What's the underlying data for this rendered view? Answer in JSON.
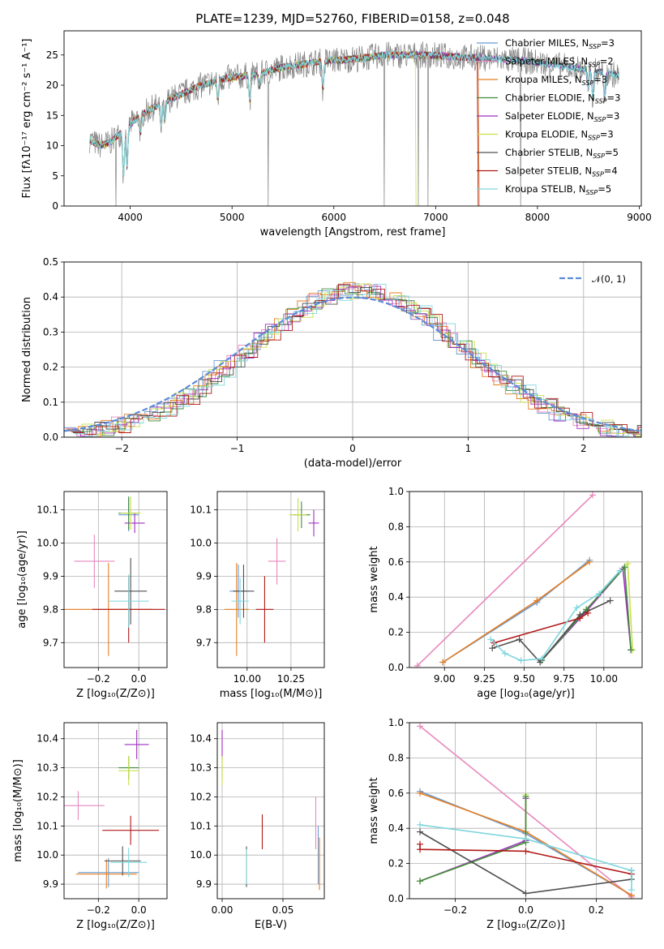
{
  "figure_title": "PLATE=1239, MJD=52760, FIBERID=0158, z=0.048",
  "series": [
    {
      "name": "Chabrier MILES",
      "nssp": "3",
      "color": "#6a9bd2"
    },
    {
      "name": "Salpeter MILES",
      "nssp": "2",
      "color": "#e788be"
    },
    {
      "name": "Kroupa MILES",
      "nssp": "3",
      "color": "#e67e22"
    },
    {
      "name": "Chabrier ELODIE",
      "nssp": "3",
      "color": "#3f8a3f"
    },
    {
      "name": "Salpeter ELODIE",
      "nssp": "3",
      "color": "#a12fc0"
    },
    {
      "name": "Kroupa ELODIE",
      "nssp": "3",
      "color": "#c8e04b"
    },
    {
      "name": "Chabrier STELIB",
      "nssp": "5",
      "color": "#505050"
    },
    {
      "name": "Salpeter STELIB",
      "nssp": "4",
      "color": "#b01818"
    },
    {
      "name": "Kroupa STELIB",
      "nssp": "5",
      "color": "#7fd6dd"
    }
  ],
  "chart_data": [
    {
      "id": "spectrum",
      "type": "line",
      "xlabel": "wavelength [Angstrom, rest frame]",
      "ylabel": "Flux [fλ10⁻¹⁷ erg cm⁻² s⁻¹ A⁻¹]",
      "xlim": [
        3350,
        9020
      ],
      "ylim": [
        0,
        29
      ],
      "xticks": [
        4000,
        5000,
        6000,
        7000,
        8000,
        9000
      ],
      "yticks": [
        0,
        5,
        10,
        15,
        20,
        25
      ],
      "grid": false,
      "legend": "top-right",
      "continuum": {
        "x": [
          3600,
          3700,
          3800,
          3900,
          4000,
          4100,
          4300,
          4500,
          4700,
          4900,
          5100,
          5300,
          5500,
          5700,
          5900,
          6100,
          6300,
          6500,
          6700,
          6900,
          7100,
          7300,
          7500,
          7700,
          7900,
          8100,
          8300,
          8500,
          8700,
          8800
        ],
        "y": [
          11,
          10,
          10.5,
          12,
          13.5,
          15,
          17,
          18.5,
          20,
          21,
          21.5,
          22,
          23,
          23.5,
          24,
          24.2,
          24.5,
          25,
          25,
          25,
          24.8,
          24.6,
          24.5,
          24.2,
          24,
          23.5,
          23,
          22.5,
          22,
          21.5
        ]
      },
      "absorption_lines": [
        {
          "x": 3934,
          "depth": 0.6
        },
        {
          "x": 3969,
          "depth": 0.5
        },
        {
          "x": 4101,
          "depth": 0.2
        },
        {
          "x": 4304,
          "depth": 0.25
        },
        {
          "x": 4340,
          "depth": 0.2
        },
        {
          "x": 4861,
          "depth": 0.15
        },
        {
          "x": 5175,
          "depth": 0.2
        },
        {
          "x": 5270,
          "depth": 0.1
        },
        {
          "x": 5893,
          "depth": 0.2
        },
        {
          "x": 8498,
          "depth": 0.15
        },
        {
          "x": 8542,
          "depth": 0.2
        },
        {
          "x": 8662,
          "depth": 0.2
        }
      ],
      "cutoffs": [
        {
          "series": "Kroupa ELODIE",
          "x": 6800
        },
        {
          "series": "Salpeter STELIB",
          "x": 7410
        },
        {
          "series": "Kroupa MILES",
          "x": 7420
        },
        {
          "series": "Chabrier MILES",
          "x": 7420
        },
        {
          "series": "Salpeter MILES",
          "x": 7420
        }
      ]
    },
    {
      "id": "residuals",
      "type": "histogram",
      "xlabel": "(data-model)/error",
      "ylabel": "Normed distribution",
      "xlim": [
        -2.5,
        2.5
      ],
      "ylim": [
        0,
        0.5
      ],
      "xticks": [
        -2,
        -1,
        0,
        1,
        2
      ],
      "yticks": [
        0.0,
        0.1,
        0.2,
        0.3,
        0.4,
        0.5
      ],
      "grid": true,
      "legend": "top-right",
      "reference_curve": {
        "label": "𝒩(0, 1)",
        "mean": 0,
        "sigma": 1,
        "color": "#5b8bd6"
      },
      "bin_width": 0.1
    },
    {
      "id": "age_vs_Z",
      "type": "errorbar",
      "xlabel": "Z [log₁₀(Z/Z⊙)]",
      "ylabel": "age  [log₁₀(age/yr)]",
      "xlim": [
        -0.37,
        0.14
      ],
      "ylim": [
        9.625,
        10.155
      ],
      "xticks": [
        -0.2,
        0.0
      ],
      "yticks": [
        9.7,
        9.8,
        9.9,
        10.0,
        10.1
      ],
      "grid": true,
      "points": [
        {
          "series": "Chabrier MILES",
          "x": -0.05,
          "xerr": 0.05,
          "y": 10.085,
          "yerr": 0.05
        },
        {
          "series": "Salpeter MILES",
          "x": -0.22,
          "xerr": 0.1,
          "y": 9.945,
          "yerr": 0.08
        },
        {
          "series": "Kroupa MILES",
          "x": -0.15,
          "xerr": 0.22,
          "y": 9.8,
          "yerr": 0.14
        },
        {
          "series": "Chabrier ELODIE",
          "x": -0.05,
          "xerr": 0.05,
          "y": 10.09,
          "yerr": 0.05
        },
        {
          "series": "Salpeter ELODIE",
          "x": -0.02,
          "xerr": 0.05,
          "y": 10.06,
          "yerr": 0.03
        },
        {
          "series": "Kroupa ELODIE",
          "x": -0.04,
          "xerr": 0.05,
          "y": 10.09,
          "yerr": 0.05
        },
        {
          "series": "Chabrier STELIB",
          "x": -0.04,
          "xerr": 0.08,
          "y": 9.855,
          "yerr": 0.1
        },
        {
          "series": "Salpeter STELIB",
          "x": -0.05,
          "xerr": 0.18,
          "y": 9.8,
          "yerr": 0.1
        },
        {
          "series": "Kroupa STELIB",
          "x": -0.05,
          "xerr": 0.1,
          "y": 9.825,
          "yerr": 0.08
        }
      ]
    },
    {
      "id": "age_vs_mass",
      "type": "errorbar",
      "xlabel": "mass [log₁₀(M/M⊙)]",
      "ylabel": "",
      "xlim": [
        9.83,
        10.44
      ],
      "ylim": [
        9.625,
        10.155
      ],
      "xticks": [
        10.0,
        10.25
      ],
      "yticks": [
        9.7,
        9.8,
        9.9,
        10.0,
        10.1
      ],
      "grid": true,
      "points": [
        {
          "series": "Chabrier MILES",
          "x": 9.95,
          "xerr": 0.05,
          "y": 9.855,
          "yerr": 0.08
        },
        {
          "series": "Salpeter MILES",
          "x": 10.17,
          "xerr": 0.05,
          "y": 9.945,
          "yerr": 0.07
        },
        {
          "series": "Kroupa MILES",
          "x": 9.94,
          "xerr": 0.07,
          "y": 9.8,
          "yerr": 0.14
        },
        {
          "series": "Chabrier ELODIE",
          "x": 10.31,
          "xerr": 0.05,
          "y": 10.085,
          "yerr": 0.04
        },
        {
          "series": "Salpeter ELODIE",
          "x": 10.38,
          "xerr": 0.03,
          "y": 10.06,
          "yerr": 0.04
        },
        {
          "series": "Kroupa ELODIE",
          "x": 10.29,
          "xerr": 0.05,
          "y": 10.085,
          "yerr": 0.05
        },
        {
          "series": "Chabrier STELIB",
          "x": 9.98,
          "xerr": 0.06,
          "y": 9.855,
          "yerr": 0.08
        },
        {
          "series": "Salpeter STELIB",
          "x": 10.1,
          "xerr": 0.05,
          "y": 9.8,
          "yerr": 0.1
        },
        {
          "series": "Kroupa STELIB",
          "x": 9.96,
          "xerr": 0.05,
          "y": 9.825,
          "yerr": 0.07
        }
      ]
    },
    {
      "id": "mw_vs_age",
      "type": "line",
      "xlabel": "age  [log₁₀(age/yr)]",
      "ylabel": "mass weight",
      "xlim": [
        8.78,
        10.24
      ],
      "ylim": [
        0,
        1.0
      ],
      "xticks": [
        9.0,
        9.25,
        9.5,
        9.75,
        10.0
      ],
      "yticks": [
        0.0,
        0.2,
        0.4,
        0.6,
        0.8,
        1.0
      ],
      "grid": true,
      "lines": [
        {
          "series": "Salpeter MILES",
          "x": [
            8.83,
            9.93
          ],
          "y": [
            0.01,
            0.98
          ]
        },
        {
          "series": "Chabrier MILES",
          "x": [
            8.99,
            9.58,
            9.91
          ],
          "y": [
            0.03,
            0.37,
            0.61
          ]
        },
        {
          "series": "Kroupa MILES",
          "x": [
            8.99,
            9.58,
            9.91
          ],
          "y": [
            0.03,
            0.38,
            0.6
          ]
        },
        {
          "series": "Salpeter ELODIE",
          "x": [
            9.61,
            9.89,
            10.12,
            10.17
          ],
          "y": [
            0.04,
            0.32,
            0.56,
            0.1
          ]
        },
        {
          "series": "Kroupa ELODIE",
          "x": [
            9.61,
            9.89,
            10.15,
            10.18
          ],
          "y": [
            0.04,
            0.33,
            0.59,
            0.1
          ]
        },
        {
          "series": "Chabrier ELODIE",
          "x": [
            9.61,
            9.89,
            10.13,
            10.17
          ],
          "y": [
            0.04,
            0.33,
            0.57,
            0.1
          ]
        },
        {
          "series": "Chabrier STELIB",
          "x": [
            9.3,
            9.47,
            9.6,
            9.85,
            10.04
          ],
          "y": [
            0.11,
            0.16,
            0.03,
            0.3,
            0.38
          ]
        },
        {
          "series": "Salpeter STELIB",
          "x": [
            9.31,
            9.85,
            9.9
          ],
          "y": [
            0.14,
            0.28,
            0.31
          ]
        },
        {
          "series": "Kroupa STELIB",
          "x": [
            9.29,
            9.38,
            9.48,
            9.61,
            9.83,
            9.97,
            10.1
          ],
          "y": [
            0.16,
            0.08,
            0.04,
            0.05,
            0.34,
            0.42,
            0.55
          ]
        }
      ]
    },
    {
      "id": "mass_vs_Z",
      "type": "errorbar",
      "xlabel": "Z [log₁₀(Z/Z⊙)]",
      "ylabel": "mass [log₁₀(M/M⊙)]",
      "xlim": [
        -0.37,
        0.14
      ],
      "ylim": [
        9.85,
        10.455
      ],
      "xticks": [
        -0.2,
        0.0
      ],
      "yticks": [
        9.9,
        10.0,
        10.1,
        10.2,
        10.3,
        10.4
      ],
      "grid": true,
      "points": [
        {
          "series": "Chabrier MILES",
          "x": -0.15,
          "xerr": 0.15,
          "y": 9.94,
          "yerr": 0.05
        },
        {
          "series": "Salpeter MILES",
          "x": -0.3,
          "xerr": 0.13,
          "y": 10.17,
          "yerr": 0.05
        },
        {
          "series": "Kroupa MILES",
          "x": -0.16,
          "xerr": 0.15,
          "y": 9.935,
          "yerr": 0.05
        },
        {
          "series": "Chabrier ELODIE",
          "x": -0.05,
          "xerr": 0.05,
          "y": 10.3,
          "yerr": 0.04
        },
        {
          "series": "Salpeter ELODIE",
          "x": -0.01,
          "xerr": 0.06,
          "y": 10.38,
          "yerr": 0.05
        },
        {
          "series": "Kroupa ELODIE",
          "x": -0.05,
          "xerr": 0.05,
          "y": 10.29,
          "yerr": 0.05
        },
        {
          "series": "Chabrier STELIB",
          "x": -0.08,
          "xerr": 0.09,
          "y": 9.98,
          "yerr": 0.05
        },
        {
          "series": "Salpeter STELIB",
          "x": -0.04,
          "xerr": 0.14,
          "y": 10.085,
          "yerr": 0.05
        },
        {
          "series": "Kroupa STELIB",
          "x": -0.05,
          "xerr": 0.09,
          "y": 9.975,
          "yerr": 0.05
        }
      ]
    },
    {
      "id": "mass_vs_ebv",
      "type": "errorbar",
      "xlabel": "E(B-V)",
      "ylabel": "",
      "xlim": [
        -0.004,
        0.084
      ],
      "ylim": [
        9.85,
        10.455
      ],
      "xticks": [
        0.0,
        0.05
      ],
      "yticks": [
        9.9,
        10.0,
        10.1,
        10.2,
        10.3,
        10.4
      ],
      "grid": true,
      "points": [
        {
          "series": "Chabrier MILES",
          "x": 0.079,
          "xerr": 0,
          "y": 10.0,
          "yerr": 0.1
        },
        {
          "series": "Salpeter MILES",
          "x": 0.077,
          "xerr": 0,
          "y": 10.11,
          "yerr": 0.09
        },
        {
          "series": "Kroupa MILES",
          "x": 0.08,
          "xerr": 0,
          "y": 9.97,
          "yerr": 0.09
        },
        {
          "series": "Chabrier ELODIE",
          "x": 0.0,
          "xerr": 0,
          "y": 10.3,
          "yerr": 0.04
        },
        {
          "series": "Salpeter ELODIE",
          "x": 0.0,
          "xerr": 0,
          "y": 10.38,
          "yerr": 0.05
        },
        {
          "series": "Kroupa ELODIE",
          "x": 0.0,
          "xerr": 0,
          "y": 10.29,
          "yerr": 0.05
        },
        {
          "series": "Chabrier STELIB",
          "x": 0.02,
          "xerr": 0,
          "y": 9.96,
          "yerr": 0.07
        },
        {
          "series": "Salpeter STELIB",
          "x": 0.033,
          "xerr": 0,
          "y": 10.08,
          "yerr": 0.06
        },
        {
          "series": "Kroupa STELIB",
          "x": 0.02,
          "xerr": 0,
          "y": 9.96,
          "yerr": 0.06
        }
      ]
    },
    {
      "id": "mw_vs_Z",
      "type": "line",
      "xlabel": "Z [log₁₀(Z/Z⊙)]",
      "ylabel": "mass weight",
      "xlim": [
        -0.33,
        0.33
      ],
      "ylim": [
        0,
        1.0
      ],
      "xticks": [
        -0.2,
        0.0,
        0.2
      ],
      "yticks": [
        0.0,
        0.2,
        0.4,
        0.6,
        0.8,
        1.0
      ],
      "grid": true,
      "lines": [
        {
          "series": "Salpeter MILES",
          "x": [
            -0.3,
            0.3
          ],
          "y": [
            0.98,
            0.01
          ]
        },
        {
          "series": "Chabrier MILES",
          "x": [
            -0.3,
            0.0,
            0.3
          ],
          "y": [
            0.61,
            0.37,
            0.02
          ]
        },
        {
          "series": "Kroupa MILES",
          "x": [
            -0.3,
            0.0,
            0.3
          ],
          "y": [
            0.6,
            0.38,
            0.02
          ]
        },
        {
          "series": "Salpeter ELODIE",
          "x": [
            -0.3,
            0.0,
            0.0
          ],
          "y": [
            0.1,
            0.33,
            0.57
          ]
        },
        {
          "series": "Kroupa ELODIE",
          "x": [
            -0.3,
            0.0,
            0.0
          ],
          "y": [
            0.1,
            0.32,
            0.59
          ]
        },
        {
          "series": "Chabrier ELODIE",
          "x": [
            -0.3,
            0.0,
            0.0
          ],
          "y": [
            0.1,
            0.32,
            0.58
          ]
        },
        {
          "series": "Chabrier STELIB",
          "x": [
            -0.3,
            0.0,
            0.3,
            0.3
          ],
          "y": [
            0.38,
            0.03,
            0.11,
            0.16
          ]
        },
        {
          "series": "Salpeter STELIB",
          "x": [
            -0.3,
            -0.3,
            0.0,
            0.3
          ],
          "y": [
            0.31,
            0.28,
            0.27,
            0.14
          ]
        },
        {
          "series": "Kroupa STELIB",
          "x": [
            -0.3,
            0.0,
            0.3,
            0.3
          ],
          "y": [
            0.42,
            0.34,
            0.16,
            0.05
          ]
        }
      ]
    }
  ]
}
